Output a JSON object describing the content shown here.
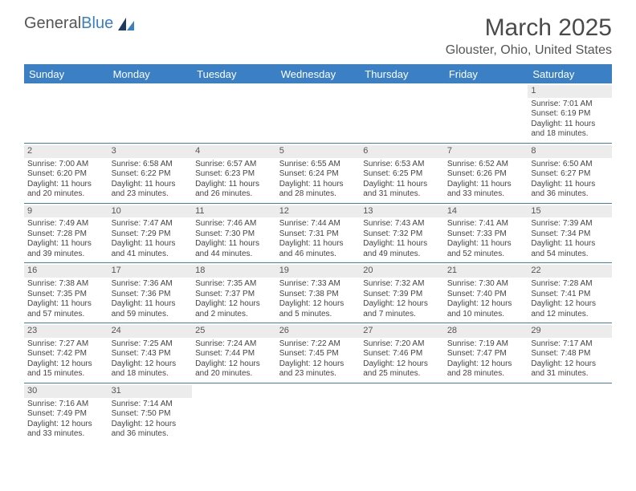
{
  "logo": {
    "text1": "General",
    "text2": "Blue"
  },
  "title": "March 2025",
  "location": "Glouster, Ohio, United States",
  "dayHeaders": [
    "Sunday",
    "Monday",
    "Tuesday",
    "Wednesday",
    "Thursday",
    "Friday",
    "Saturday"
  ],
  "colors": {
    "header_bg": "#3b7fc4",
    "header_text": "#ffffff",
    "border": "#3b7fc4",
    "daynum_bg": "#ececec"
  },
  "weeks": [
    [
      null,
      null,
      null,
      null,
      null,
      null,
      {
        "n": "1",
        "sunrise": "Sunrise: 7:01 AM",
        "sunset": "Sunset: 6:19 PM",
        "day1": "Daylight: 11 hours",
        "day2": "and 18 minutes."
      }
    ],
    [
      {
        "n": "2",
        "sunrise": "Sunrise: 7:00 AM",
        "sunset": "Sunset: 6:20 PM",
        "day1": "Daylight: 11 hours",
        "day2": "and 20 minutes."
      },
      {
        "n": "3",
        "sunrise": "Sunrise: 6:58 AM",
        "sunset": "Sunset: 6:22 PM",
        "day1": "Daylight: 11 hours",
        "day2": "and 23 minutes."
      },
      {
        "n": "4",
        "sunrise": "Sunrise: 6:57 AM",
        "sunset": "Sunset: 6:23 PM",
        "day1": "Daylight: 11 hours",
        "day2": "and 26 minutes."
      },
      {
        "n": "5",
        "sunrise": "Sunrise: 6:55 AM",
        "sunset": "Sunset: 6:24 PM",
        "day1": "Daylight: 11 hours",
        "day2": "and 28 minutes."
      },
      {
        "n": "6",
        "sunrise": "Sunrise: 6:53 AM",
        "sunset": "Sunset: 6:25 PM",
        "day1": "Daylight: 11 hours",
        "day2": "and 31 minutes."
      },
      {
        "n": "7",
        "sunrise": "Sunrise: 6:52 AM",
        "sunset": "Sunset: 6:26 PM",
        "day1": "Daylight: 11 hours",
        "day2": "and 33 minutes."
      },
      {
        "n": "8",
        "sunrise": "Sunrise: 6:50 AM",
        "sunset": "Sunset: 6:27 PM",
        "day1": "Daylight: 11 hours",
        "day2": "and 36 minutes."
      }
    ],
    [
      {
        "n": "9",
        "sunrise": "Sunrise: 7:49 AM",
        "sunset": "Sunset: 7:28 PM",
        "day1": "Daylight: 11 hours",
        "day2": "and 39 minutes."
      },
      {
        "n": "10",
        "sunrise": "Sunrise: 7:47 AM",
        "sunset": "Sunset: 7:29 PM",
        "day1": "Daylight: 11 hours",
        "day2": "and 41 minutes."
      },
      {
        "n": "11",
        "sunrise": "Sunrise: 7:46 AM",
        "sunset": "Sunset: 7:30 PM",
        "day1": "Daylight: 11 hours",
        "day2": "and 44 minutes."
      },
      {
        "n": "12",
        "sunrise": "Sunrise: 7:44 AM",
        "sunset": "Sunset: 7:31 PM",
        "day1": "Daylight: 11 hours",
        "day2": "and 46 minutes."
      },
      {
        "n": "13",
        "sunrise": "Sunrise: 7:43 AM",
        "sunset": "Sunset: 7:32 PM",
        "day1": "Daylight: 11 hours",
        "day2": "and 49 minutes."
      },
      {
        "n": "14",
        "sunrise": "Sunrise: 7:41 AM",
        "sunset": "Sunset: 7:33 PM",
        "day1": "Daylight: 11 hours",
        "day2": "and 52 minutes."
      },
      {
        "n": "15",
        "sunrise": "Sunrise: 7:39 AM",
        "sunset": "Sunset: 7:34 PM",
        "day1": "Daylight: 11 hours",
        "day2": "and 54 minutes."
      }
    ],
    [
      {
        "n": "16",
        "sunrise": "Sunrise: 7:38 AM",
        "sunset": "Sunset: 7:35 PM",
        "day1": "Daylight: 11 hours",
        "day2": "and 57 minutes."
      },
      {
        "n": "17",
        "sunrise": "Sunrise: 7:36 AM",
        "sunset": "Sunset: 7:36 PM",
        "day1": "Daylight: 11 hours",
        "day2": "and 59 minutes."
      },
      {
        "n": "18",
        "sunrise": "Sunrise: 7:35 AM",
        "sunset": "Sunset: 7:37 PM",
        "day1": "Daylight: 12 hours",
        "day2": "and 2 minutes."
      },
      {
        "n": "19",
        "sunrise": "Sunrise: 7:33 AM",
        "sunset": "Sunset: 7:38 PM",
        "day1": "Daylight: 12 hours",
        "day2": "and 5 minutes."
      },
      {
        "n": "20",
        "sunrise": "Sunrise: 7:32 AM",
        "sunset": "Sunset: 7:39 PM",
        "day1": "Daylight: 12 hours",
        "day2": "and 7 minutes."
      },
      {
        "n": "21",
        "sunrise": "Sunrise: 7:30 AM",
        "sunset": "Sunset: 7:40 PM",
        "day1": "Daylight: 12 hours",
        "day2": "and 10 minutes."
      },
      {
        "n": "22",
        "sunrise": "Sunrise: 7:28 AM",
        "sunset": "Sunset: 7:41 PM",
        "day1": "Daylight: 12 hours",
        "day2": "and 12 minutes."
      }
    ],
    [
      {
        "n": "23",
        "sunrise": "Sunrise: 7:27 AM",
        "sunset": "Sunset: 7:42 PM",
        "day1": "Daylight: 12 hours",
        "day2": "and 15 minutes."
      },
      {
        "n": "24",
        "sunrise": "Sunrise: 7:25 AM",
        "sunset": "Sunset: 7:43 PM",
        "day1": "Daylight: 12 hours",
        "day2": "and 18 minutes."
      },
      {
        "n": "25",
        "sunrise": "Sunrise: 7:24 AM",
        "sunset": "Sunset: 7:44 PM",
        "day1": "Daylight: 12 hours",
        "day2": "and 20 minutes."
      },
      {
        "n": "26",
        "sunrise": "Sunrise: 7:22 AM",
        "sunset": "Sunset: 7:45 PM",
        "day1": "Daylight: 12 hours",
        "day2": "and 23 minutes."
      },
      {
        "n": "27",
        "sunrise": "Sunrise: 7:20 AM",
        "sunset": "Sunset: 7:46 PM",
        "day1": "Daylight: 12 hours",
        "day2": "and 25 minutes."
      },
      {
        "n": "28",
        "sunrise": "Sunrise: 7:19 AM",
        "sunset": "Sunset: 7:47 PM",
        "day1": "Daylight: 12 hours",
        "day2": "and 28 minutes."
      },
      {
        "n": "29",
        "sunrise": "Sunrise: 7:17 AM",
        "sunset": "Sunset: 7:48 PM",
        "day1": "Daylight: 12 hours",
        "day2": "and 31 minutes."
      }
    ],
    [
      {
        "n": "30",
        "sunrise": "Sunrise: 7:16 AM",
        "sunset": "Sunset: 7:49 PM",
        "day1": "Daylight: 12 hours",
        "day2": "and 33 minutes."
      },
      {
        "n": "31",
        "sunrise": "Sunrise: 7:14 AM",
        "sunset": "Sunset: 7:50 PM",
        "day1": "Daylight: 12 hours",
        "day2": "and 36 minutes."
      },
      null,
      null,
      null,
      null,
      null
    ]
  ]
}
